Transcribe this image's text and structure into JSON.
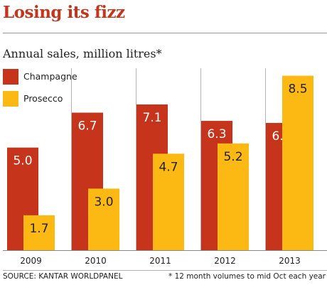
{
  "chart_data": {
    "type": "bar",
    "title": "Losing its fizz",
    "subtitle": "Annual sales, million litres*",
    "categories": [
      "2009",
      "2010",
      "2011",
      "2012",
      "2013"
    ],
    "series": [
      {
        "name": "Champagne",
        "color": "#c7341c",
        "label_color": "#ffffff",
        "values": [
          5.0,
          6.7,
          7.1,
          6.3,
          6.2
        ]
      },
      {
        "name": "Prosecco",
        "color": "#fdb913",
        "label_color": "#222222",
        "values": [
          1.7,
          3.0,
          4.7,
          5.2,
          8.5
        ]
      }
    ],
    "ylim": [
      0,
      8.9
    ],
    "xlabel": "",
    "ylabel": "",
    "grid": false,
    "legend": "top-left",
    "source": "SOURCE: KANTAR WORLDPANEL",
    "note": "* 12 month volumes to mid Oct each year"
  }
}
